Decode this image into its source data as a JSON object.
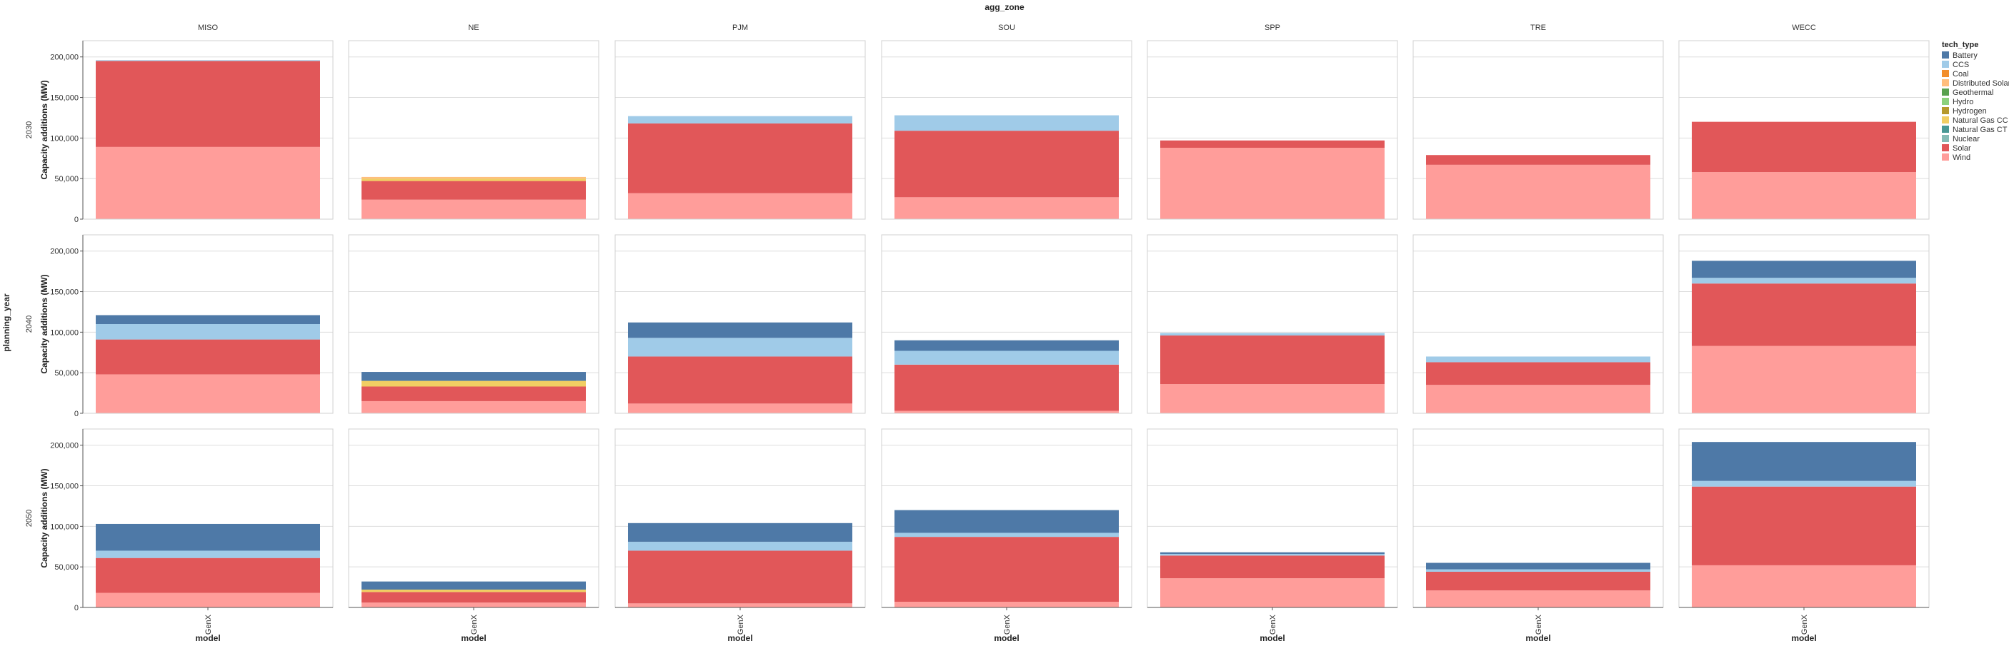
{
  "chart_data": {
    "type": "bar",
    "stacked": true,
    "column_facet_title": "agg_zone",
    "row_facet_title": "planning_year",
    "zones": [
      "MISO",
      "NE",
      "PJM",
      "SOU",
      "SPP",
      "TRE",
      "WECC"
    ],
    "years": [
      "2030",
      "2040",
      "2050"
    ],
    "categories": [
      "GenX"
    ],
    "xlabel": "model",
    "ylabel": "Capacity additions (MW)",
    "ylim": [
      0,
      220000
    ],
    "yticks": [
      0,
      50000,
      100000,
      150000,
      200000
    ],
    "ytick_labels": [
      "0",
      "50,000",
      "100,000",
      "150,000",
      "200,000"
    ],
    "grid": true,
    "legend": {
      "title": "tech_type",
      "placement": "right",
      "items": [
        {
          "name": "Battery",
          "color": "#4e79a7"
        },
        {
          "name": "CCS",
          "color": "#a0cbe8"
        },
        {
          "name": "Coal",
          "color": "#f28e2b"
        },
        {
          "name": "Distributed Solar",
          "color": "#ffbe7d"
        },
        {
          "name": "Geothermal",
          "color": "#59a14f"
        },
        {
          "name": "Hydro",
          "color": "#8cd17d"
        },
        {
          "name": "Hydrogen",
          "color": "#b6992d"
        },
        {
          "name": "Natural Gas CC",
          "color": "#f1ce63"
        },
        {
          "name": "Natural Gas CT",
          "color": "#499894"
        },
        {
          "name": "Nuclear",
          "color": "#86bcb6"
        },
        {
          "name": "Solar",
          "color": "#e15759"
        },
        {
          "name": "Wind",
          "color": "#ff9d9a"
        }
      ]
    },
    "stack_order": [
      "Wind",
      "Solar",
      "Nuclear",
      "Natural Gas CT",
      "Natural Gas CC",
      "Hydrogen",
      "Hydro",
      "Geothermal",
      "Distributed Solar",
      "Coal",
      "CCS",
      "Battery"
    ],
    "data": {
      "2030": {
        "MISO": {
          "Wind": 89000,
          "Solar": 106000,
          "CCS": 1000
        },
        "NE": {
          "Wind": 24000,
          "Solar": 23000,
          "Natural Gas CC": 3000,
          "Distributed Solar": 2000
        },
        "PJM": {
          "Wind": 32000,
          "Solar": 86000,
          "CCS": 9000
        },
        "SOU": {
          "Wind": 27000,
          "Solar": 82000,
          "CCS": 19000
        },
        "SPP": {
          "Wind": 88000,
          "Solar": 9000
        },
        "TRE": {
          "Wind": 67000,
          "Solar": 12000
        },
        "WECC": {
          "Wind": 58000,
          "Solar": 62000
        }
      },
      "2040": {
        "MISO": {
          "Wind": 48000,
          "Solar": 43000,
          "CCS": 19000,
          "Battery": 11000
        },
        "NE": {
          "Wind": 15000,
          "Solar": 18000,
          "Natural Gas CC": 7000,
          "Battery": 11000
        },
        "PJM": {
          "Wind": 12000,
          "Solar": 58000,
          "CCS": 23000,
          "Battery": 19000
        },
        "SOU": {
          "Wind": 3000,
          "Solar": 57000,
          "CCS": 17000,
          "Battery": 13000
        },
        "SPP": {
          "Wind": 36000,
          "Solar": 60000,
          "CCS": 3000
        },
        "TRE": {
          "Wind": 35000,
          "Solar": 28000,
          "CCS": 7000
        },
        "WECC": {
          "Wind": 83000,
          "Solar": 77000,
          "CCS": 7000,
          "Battery": 21000
        }
      },
      "2050": {
        "MISO": {
          "Wind": 18000,
          "Solar": 43000,
          "CCS": 9000,
          "Battery": 33000
        },
        "NE": {
          "Wind": 6000,
          "Solar": 13000,
          "Natural Gas CC": 3000,
          "Battery": 10000
        },
        "PJM": {
          "Wind": 5000,
          "Solar": 65000,
          "CCS": 11000,
          "Battery": 23000
        },
        "SOU": {
          "Wind": 7000,
          "Solar": 80000,
          "CCS": 5000,
          "Battery": 28000
        },
        "SPP": {
          "Wind": 36000,
          "Solar": 28000,
          "CCS": 2000,
          "Battery": 2000
        },
        "TRE": {
          "Wind": 21000,
          "Solar": 23000,
          "CCS": 3000,
          "Battery": 8000
        },
        "WECC": {
          "Wind": 52000,
          "Solar": 97000,
          "CCS": 7000,
          "Battery": 48000
        }
      }
    }
  }
}
